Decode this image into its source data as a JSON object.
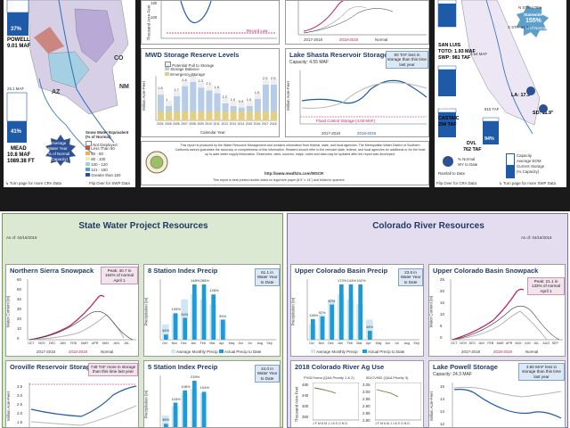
{
  "colors": {
    "dark_band": "#1a1a1a",
    "swp_header": "#dce9d2",
    "swp_border": "#6f9a57",
    "cr_header": "#e3ddef",
    "cr_border": "#7d6ca6",
    "swp_line": "#c0185e",
    "prior_line": "#b5b5b5",
    "normal_line": "#333333",
    "bar_blue": "#1d9bd7",
    "bar_light": "#cfe6f5",
    "reservoir_blue": "#1e5aa8"
  },
  "top_left": {
    "top_tick_labels": [
      "150",
      "100"
    ],
    "y_axis_label": "Thousand Acre-Feet",
    "record_low_label": "Record Low",
    "powell": {
      "percent": "37%",
      "name": "POWELL",
      "storage": "9.01 MAF"
    },
    "mead": {
      "top_label": "26.1 MAF",
      "percent": "41%",
      "name": "MEAD",
      "storage": "10.8 MAF",
      "elev": "1089.38 FT"
    },
    "state_labels": {
      "co": "CO",
      "nm": "NM",
      "az": "AZ"
    },
    "legend": {
      "title": "Snow Water Equivalent (% of Normal)",
      "items": [
        "Not Displayed",
        "Less Than 50",
        "50 - 80",
        "80 - 100",
        "100 - 120",
        "121 - 150",
        "Greater than 150"
      ],
      "swatches": [
        "#ffffff",
        "#c3553b",
        "#e7b34d",
        "#f3ef9f",
        "#9fd3e4",
        "#5b9fcb",
        "#2d4f93"
      ]
    },
    "inset_labels": {
      "a": "Average",
      "b": "Water Year",
      "c": "% of Normal",
      "d": "(Capacity)"
    },
    "footer": "Turn page for more CRA Data",
    "footer_right": "Flip Over for SWP Data"
  },
  "top_mid": {
    "snow_legend": [
      "2017-2018",
      "2018-2019",
      "Normal"
    ],
    "mwd": {
      "title": "MWD Storage Reserve Levels",
      "legend": [
        "Potential Pull to Storage",
        "Storage Balance",
        "Emergency Storage"
      ],
      "ylabel": "Million Acre-Feet",
      "xlabel": "Calendar Year",
      "years": [
        "2004",
        "2005",
        "2006",
        "2007",
        "2008",
        "2009",
        "2010",
        "2011",
        "2012",
        "2013",
        "2014",
        "2015",
        "2016",
        "2017",
        "2018"
      ],
      "values_text": [
        "1.8",
        "1",
        "1.7",
        "2.4",
        "2.7",
        "2.3",
        "2.1",
        "1.9",
        "1.2",
        "1.0",
        "0.9",
        "1.0",
        "1.5",
        "2.5",
        "2.5"
      ]
    },
    "shasta": {
      "title": "Lake Shasta Reservoir Storage",
      "capacity": "Capacity: 4.55 MAF",
      "callout": "60 TAF less in storage than this time last year",
      "ylabel": "Million Acre-Feet",
      "flood_label": "Flood Control Storage (4.00 MAF)",
      "legend": [
        "2017-2018",
        "2018-2019"
      ]
    },
    "disclaimer": "This report is produced by the Water Resource Management and contains information from federal, state, and local agencies. The Metropolitan Water District of Southern California cannot guarantee the accuracy or completeness of this information. Readers should refer to the relevant state, federal, and local agencies for additional or for the most up to date water supply information. Reservoirs, rates, sources, maps, notes and data may be updated after the report was developed.",
    "website": "http://www.mwdh2o.com/WSCR",
    "print_note": "This report is best printed double sided on legal size paper (8.5\" x 14\") and folded in quarters."
  },
  "top_right": {
    "overall": {
      "label": "Statewide",
      "percent": "155%",
      "sub": "% of Normal"
    },
    "n_sta": "N STA: 126%",
    "s_sta": "S STA: 44.0",
    "san_luis": {
      "pct": "95%",
      "name": "SAN LUIS",
      "toto": "TOTO: 1.93 MAF",
      "swp": "SWP: 981 TAF"
    },
    "oroville_cap": "3.54 MAF",
    "castaic": {
      "pct": "90%",
      "name": "CASTAIC",
      "storage": "294 TAF"
    },
    "dvl": {
      "pct": "94%",
      "name": "DVL",
      "storage": "762 TAF",
      "cap": "810 TAF"
    },
    "la": "LA: 17.9\"",
    "sd": "SD: 11.9\"",
    "legend": {
      "pct_normal": "% Normal",
      "wytd": "WY to Date",
      "capacity": "Capacity",
      "avg": "Average EOM",
      "current": "Current Storage",
      "pct_cap": "(% Capacity)",
      "rainfall": "Rainfall to Date"
    },
    "footer_left": "Flip Over for CRA Data",
    "footer_right": "Turn page for more SWP Data"
  },
  "swp": {
    "title": "State Water Project Resources",
    "as_of": "As of: 04/16/2019",
    "snowpack": {
      "title": "Northern Sierra Snowpack",
      "callout": "Peak: 40.7 in 154% of normal April 1",
      "ylabel": "Water Content (in)",
      "yticks": [
        "60",
        "50",
        "40",
        "30",
        "20",
        "10",
        "0"
      ],
      "xticks": [
        "OCT",
        "NOV",
        "DEC",
        "JAN",
        "FEB",
        "MAR",
        "APR",
        "MAY",
        "JUN",
        "JUL"
      ],
      "legend": [
        "2017-2018",
        "2018-2019",
        "Normal"
      ]
    },
    "eight_station": {
      "title": "8 Station Index Precip",
      "callout": "61.1 in Water Year to Date",
      "ylabel": "Precipitation (in)",
      "months": [
        "Oct",
        "Nov",
        "Dec",
        "Jan",
        "Feb",
        "Mar",
        "Apr",
        "May",
        "Jun",
        "Jul",
        "Aug",
        "Sep"
      ],
      "labels": [
        "34%",
        "105%",
        "54%",
        "148%",
        "265%",
        "128%",
        "99%"
      ],
      "legend": [
        "Average Monthly Precip",
        "Actual Precip to Date"
      ]
    },
    "oroville": {
      "title": "Oroville Reservoir Storage",
      "callout": "748 TAF more in storage than this time last year",
      "ylabel": "Million Acre-Feet",
      "yticks": [
        "3.5",
        "3.0",
        "2.5",
        "2.0",
        "1.5"
      ]
    },
    "five_station": {
      "title": "5 Station Index Precip",
      "callout": "44.0 in Water Year to Date",
      "ylabel": "Precipitation (in)",
      "labels": [
        "38%",
        "118%",
        "108%",
        "239%",
        "104%"
      ]
    }
  },
  "cr": {
    "title": "Colorado River Resources",
    "as_of": "As of: 04/16/2019",
    "upper_precip": {
      "title": "Upper Colorado Basin Precip",
      "callout": "23.6 in Water Year to Date",
      "ylabel": "Precipitation (in)",
      "labels": [
        "136%",
        "92%",
        "87%",
        "172%",
        "143%",
        "192%",
        "44%"
      ],
      "months": [
        "Oct",
        "Nov",
        "Dec",
        "Jan",
        "Feb",
        "Mar",
        "Apr",
        "May",
        "Jun",
        "Jul",
        "Aug",
        "Sep"
      ],
      "legend": [
        "Average Monthly Precip",
        "Actual Precip to Date"
      ]
    },
    "upper_snowpack": {
      "title": "Upper Colorado Basin Snowpack",
      "callout": "Peak: 21.1 in 133% of normal April 1",
      "ylabel": "Water Content (in)",
      "yticks": [
        "25",
        "20",
        "15",
        "10",
        "5",
        "0"
      ],
      "xticks": [
        "OCT",
        "NOV",
        "DEC",
        "JAN",
        "FEB",
        "MAR",
        "APR",
        "MAY",
        "JUN",
        "JUL",
        "AUG",
        "SEP"
      ],
      "legend": [
        "2017-2018",
        "2018-2019",
        "Normal"
      ]
    },
    "ag_use": {
      "title": "2018 Colorado River Ag Use",
      "left_label": "PVID/Yuma (Q&A Priority 1 & 2)",
      "right_label": "IID/CVWD (Q&A Priority 3)",
      "ylabel": "Thousand Acre-Feet",
      "left_yticks": [
        "480",
        "440",
        "400",
        "360"
      ],
      "right_yticks": [
        "3.05",
        "3.00",
        "2.95",
        "2.90",
        "2.85",
        "2.80"
      ],
      "xticks": "J F M A M J J A S O N D"
    },
    "powell": {
      "title": "Lake Powell Storage",
      "capacity": "Capacity: 24.3 MAF",
      "callout": "3.80 MAF less in storage than this time last year",
      "ylabel": "Million Acre-Feet",
      "yticks": [
        "15",
        "14",
        "13",
        "12"
      ]
    }
  }
}
